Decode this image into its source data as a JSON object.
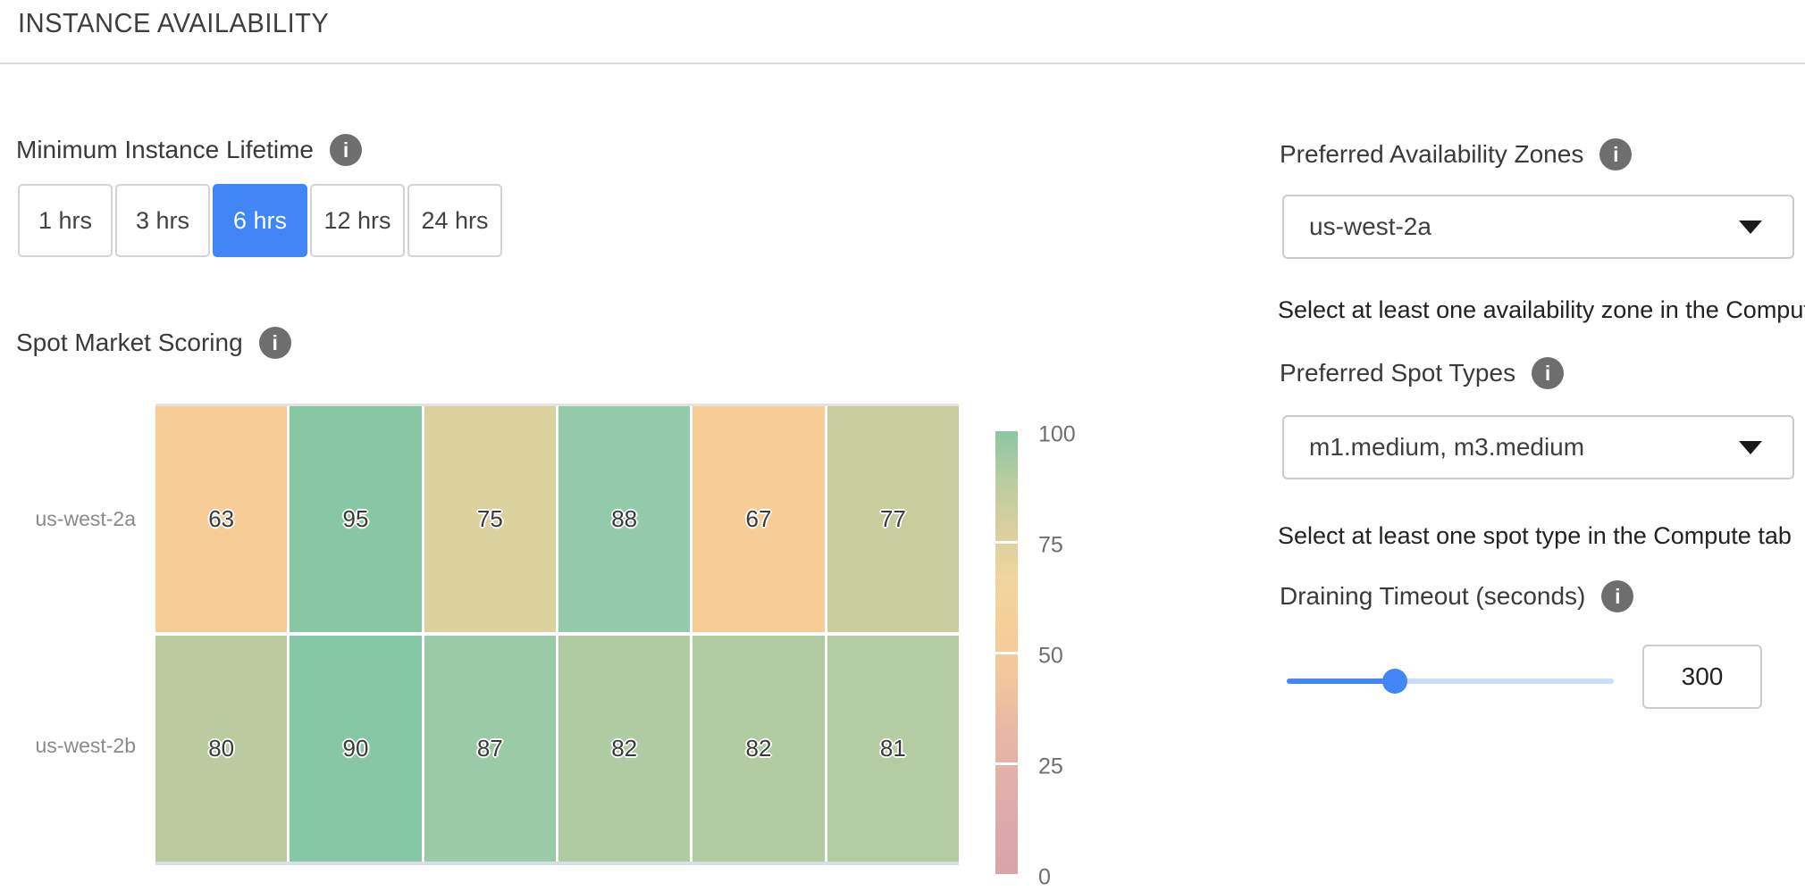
{
  "header": {
    "title": "INSTANCE AVAILABILITY"
  },
  "colors": {
    "accent": "#4285F4",
    "selected_text": "#ffffff"
  },
  "lifetime": {
    "label": "Minimum Instance Lifetime",
    "options": [
      "1 hrs",
      "3 hrs",
      "6 hrs",
      "12 hrs",
      "24 hrs"
    ],
    "selected": "6 hrs"
  },
  "spot_scoring": {
    "label": "Spot Market Scoring"
  },
  "chart_data": {
    "type": "heatmap",
    "title": "Spot Market Scoring",
    "rows": [
      "us-west-2a",
      "us-west-2b"
    ],
    "values": [
      [
        63,
        95,
        75,
        88,
        67,
        77
      ],
      [
        80,
        90,
        87,
        82,
        82,
        81
      ]
    ],
    "cell_colors": [
      [
        "#F6CC96",
        "#87C7A3",
        "#DBD2A0",
        "#93CAA9",
        "#F7CD96",
        "#C7CD9D"
      ],
      [
        "#BACB9F",
        "#86C8A5",
        "#9BCAA6",
        "#AFCBA2",
        "#B2CCA2",
        "#B3CCA1"
      ]
    ],
    "colorbar": {
      "range": [
        0,
        100
      ],
      "ticks": [
        100,
        75,
        50,
        25,
        0
      ],
      "gradient_top_to_bottom": [
        "#8BC6A3",
        "#B9CCA0",
        "#D9CFA0",
        "#F0D59E",
        "#F6CE97",
        "#F2C79C",
        "#E9B9A4",
        "#E2B0AA",
        "#DDAAAB",
        "#D8A4A6"
      ]
    }
  },
  "zones": {
    "label": "Preferred Availability Zones",
    "value": "us-west-2a",
    "helper": "Select at least one availability zone in the Compute tab"
  },
  "spot_types": {
    "label": "Preferred Spot Types",
    "value": "m1.medium, m3.medium",
    "helper": "Select at least one spot type in the Compute tab"
  },
  "draining": {
    "label": "Draining Timeout (seconds)",
    "value": "300"
  }
}
